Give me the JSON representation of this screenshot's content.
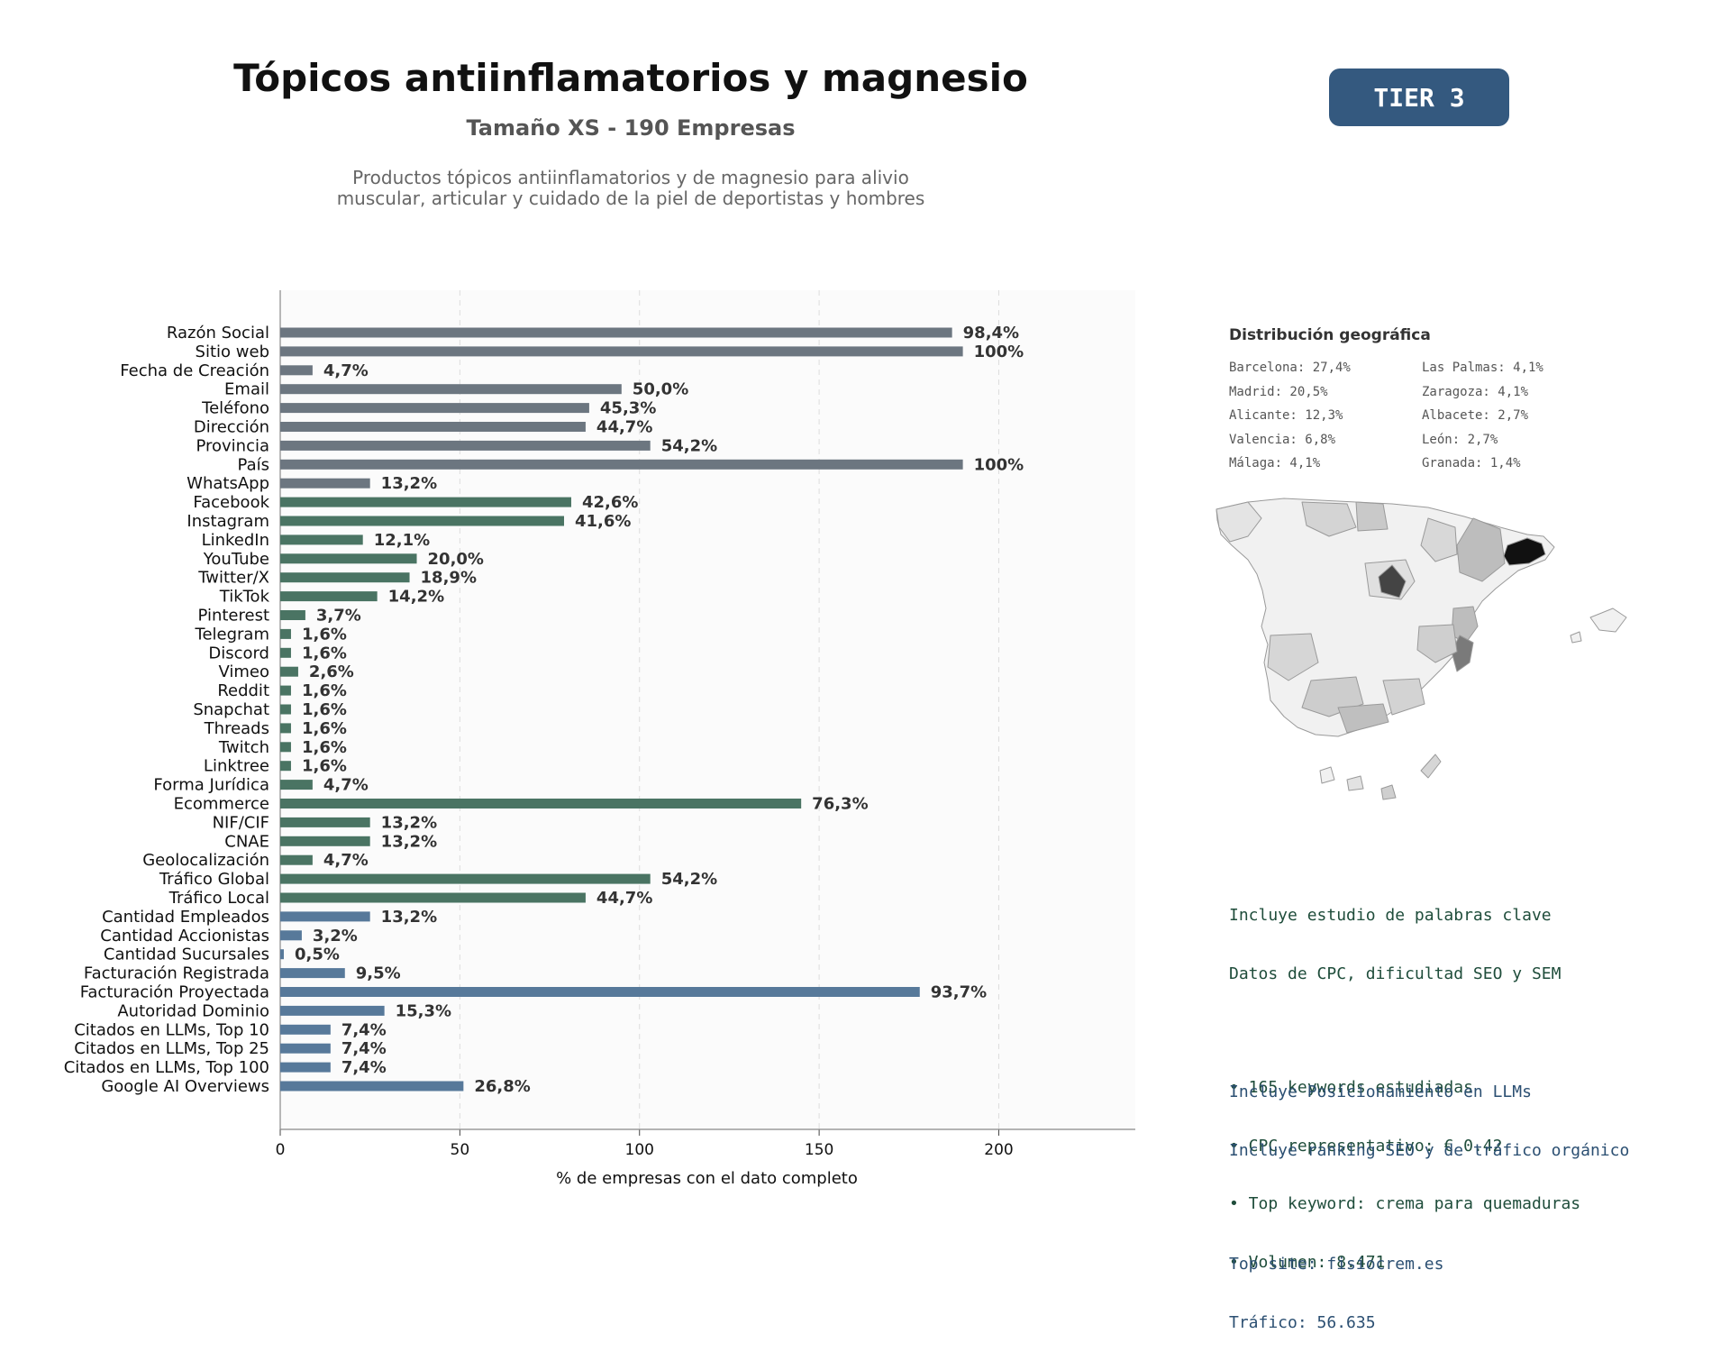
{
  "header": {
    "title": "Tópicos antiinflamatorios y magnesio",
    "subtitle": "Tamaño XS - 190 Empresas",
    "description_line1": "Productos tópicos antiinflamatorios y de magnesio para alivio",
    "description_line2": "muscular, articular y cuidado de la piel de deportistas y hombres",
    "tier": "TIER 3"
  },
  "colors": {
    "gray": "#6c7680",
    "green": "#4a7463",
    "blue": "#57799a",
    "tier_bg": "#34597f"
  },
  "chart_data": {
    "type": "bar",
    "orientation": "horizontal",
    "xlabel": "% de empresas con el dato completo",
    "xlim": [
      0,
      238
    ],
    "xticks": [
      0,
      50,
      100,
      150,
      200
    ],
    "grid": "vertical dashed",
    "categories": [
      "Razón Social",
      "Sitio web",
      "Fecha de Creación",
      "Email",
      "Teléfono",
      "Dirección",
      "Provincia",
      "País",
      "WhatsApp",
      "Facebook",
      "Instagram",
      "LinkedIn",
      "YouTube",
      "Twitter/X",
      "TikTok",
      "Pinterest",
      "Telegram",
      "Discord",
      "Vimeo",
      "Reddit",
      "Snapchat",
      "Threads",
      "Twitch",
      "Linktree",
      "Forma Jurídica",
      "Ecommerce",
      "NIF/CIF",
      "CNAE",
      "Geolocalización",
      "Tráfico Global",
      "Tráfico Local",
      "Cantidad Empleados",
      "Cantidad Accionistas",
      "Cantidad Sucursales",
      "Facturación Registrada",
      "Facturación Proyectada",
      "Autoridad Dominio",
      "Citados en LLMs, Top 10",
      "Citados en LLMs, Top 25",
      "Citados en LLMs, Top 100",
      "Google AI Overviews"
    ],
    "values": [
      187,
      190,
      9,
      95,
      86,
      85,
      103,
      190,
      25,
      81,
      79,
      23,
      38,
      36,
      27,
      7,
      3,
      3,
      5,
      3,
      3,
      3,
      3,
      3,
      9,
      145,
      25,
      25,
      9,
      103,
      85,
      25,
      6,
      1,
      18,
      178,
      29,
      14,
      14,
      14,
      51
    ],
    "labels": [
      "98,4%",
      "100%",
      "4,7%",
      "50,0%",
      "45,3%",
      "44,7%",
      "54,2%",
      "100%",
      "13,2%",
      "42,6%",
      "41,6%",
      "12,1%",
      "20,0%",
      "18,9%",
      "14,2%",
      "3,7%",
      "1,6%",
      "1,6%",
      "2,6%",
      "1,6%",
      "1,6%",
      "1,6%",
      "1,6%",
      "1,6%",
      "4,7%",
      "76,3%",
      "13,2%",
      "13,2%",
      "4,7%",
      "54,2%",
      "44,7%",
      "13,2%",
      "3,2%",
      "0,5%",
      "9,5%",
      "93,7%",
      "15,3%",
      "7,4%",
      "7,4%",
      "7,4%",
      "26,8%"
    ],
    "groups": [
      "gray",
      "gray",
      "gray",
      "gray",
      "gray",
      "gray",
      "gray",
      "gray",
      "gray",
      "green",
      "green",
      "green",
      "green",
      "green",
      "green",
      "green",
      "green",
      "green",
      "green",
      "green",
      "green",
      "green",
      "green",
      "green",
      "green",
      "green",
      "green",
      "green",
      "green",
      "green",
      "green",
      "blue",
      "blue",
      "blue",
      "blue",
      "blue",
      "blue",
      "blue",
      "blue",
      "blue",
      "blue"
    ]
  },
  "geo": {
    "title": "Distribución geográfica",
    "col1": [
      "Barcelona: 27,4%",
      "Madrid: 20,5%",
      "Alicante: 12,3%",
      "Valencia: 6,8%",
      "Málaga: 4,1%"
    ],
    "col2": [
      "Las Palmas: 4,1%",
      "Zaragoza: 4,1%",
      "Albacete: 2,7%",
      "León: 2,7%",
      "Granada: 1,4%"
    ]
  },
  "keywords": {
    "line1": "Incluye estudio de palabras clave",
    "line2": "Datos de CPC, dificultad SEO y SEM",
    "bullet1": "• 165 keywords estudiadas",
    "bullet2": "• CPC representativo: € 0.42",
    "bullet3": "• Top keyword: crema para quemaduras",
    "bullet4": "• Volumen: 8.471"
  },
  "llm": {
    "line1": "Incluye Posicionamiento en LLMs",
    "line2": "Incluye ranking SEO y de tráfico orgánico",
    "site": "Top site: fisiocrem.es",
    "traffic": "Tráfico: 56.635"
  }
}
